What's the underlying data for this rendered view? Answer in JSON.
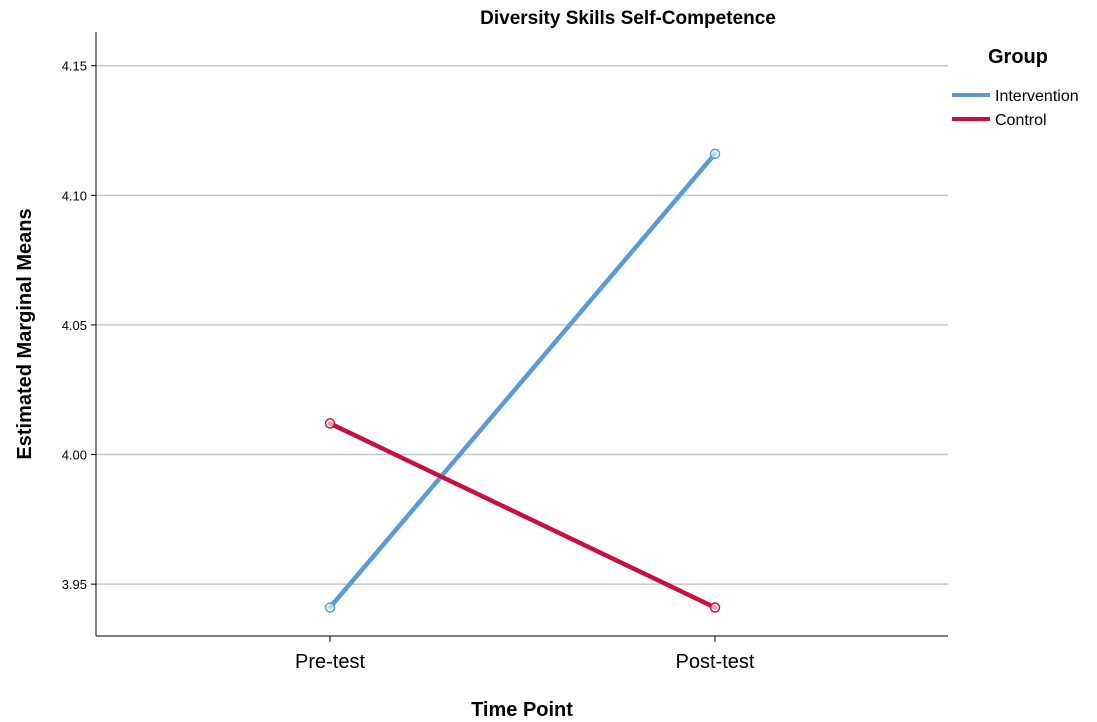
{
  "chart_data": {
    "type": "line",
    "title": "Diversity Skills Self-Competence",
    "xlabel": "Time Point",
    "ylabel": "Estimated Marginal Means",
    "categories": [
      "Pre-test",
      "Post-test"
    ],
    "ylim": [
      3.93,
      4.163
    ],
    "yticks": [
      "3.95",
      "4.00",
      "4.05",
      "4.10",
      "4.15"
    ],
    "grid": true,
    "legend": {
      "title": "Group",
      "position": "right"
    },
    "series": [
      {
        "name": "Intervention",
        "color": "#5b9bd5",
        "values": [
          3.941,
          4.116
        ]
      },
      {
        "name": "Control",
        "color": "#c8103e",
        "values": [
          4.012,
          3.941
        ]
      }
    ]
  }
}
